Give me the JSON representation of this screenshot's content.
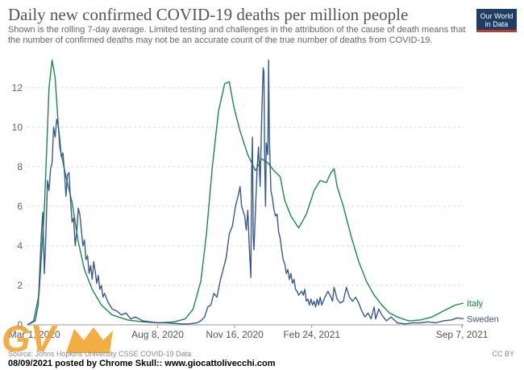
{
  "title": "Daily new confirmed COVID-19 deaths per million people",
  "subtitle": "Shown is the rolling 7-day average. Limited testing and challenges in the attribution of the cause of death means that the number of confirmed deaths may not be an accurate count of the true number of deaths from COVID-19.",
  "logo": {
    "line1": "Our World",
    "line2": "in Data"
  },
  "source": "Source: Johns Hopkins University CSSE COVID-19 Data",
  "license": "CC BY",
  "caption": "08/09/2021 posted by Chrome Skull:: www.giocattolivecchi.com",
  "watermark_text": "GV",
  "colors": {
    "italy": "#1a8a4c",
    "sweden": "#3a5a8c",
    "grid": "#dddddd",
    "axis": "#999999"
  },
  "chart_data": {
    "type": "line",
    "x_unit": "days since Feb 21, 2020",
    "x_range": [
      0,
      566
    ],
    "ylim": [
      0,
      13.5
    ],
    "yticks": [
      0,
      2,
      4,
      6,
      8,
      10,
      12
    ],
    "xticks": [
      {
        "label": "Mar 1, 2020",
        "x": 9
      },
      {
        "label": "Aug 8, 2020",
        "x": 169
      },
      {
        "label": "Nov 16, 2020",
        "x": 269
      },
      {
        "label": "Feb 24, 2021",
        "x": 369
      },
      {
        "label": "Sep 7, 2021",
        "x": 564
      }
    ],
    "grid": true,
    "series": [
      {
        "name": "Italy",
        "points": [
          [
            0,
            0
          ],
          [
            8,
            0.2
          ],
          [
            15,
            1.5
          ],
          [
            22,
            5.8
          ],
          [
            28,
            12.0
          ],
          [
            32,
            13.4
          ],
          [
            36,
            12.5
          ],
          [
            42,
            9.0
          ],
          [
            50,
            7.5
          ],
          [
            58,
            6.2
          ],
          [
            66,
            4.2
          ],
          [
            74,
            2.8
          ],
          [
            84,
            1.8
          ],
          [
            96,
            1.0
          ],
          [
            110,
            0.5
          ],
          [
            130,
            0.25
          ],
          [
            150,
            0.15
          ],
          [
            170,
            0.1
          ],
          [
            190,
            0.15
          ],
          [
            205,
            0.3
          ],
          [
            215,
            0.8
          ],
          [
            225,
            2.2
          ],
          [
            232,
            4.5
          ],
          [
            240,
            8.0
          ],
          [
            248,
            10.8
          ],
          [
            256,
            12.2
          ],
          [
            262,
            12.3
          ],
          [
            268,
            11.0
          ],
          [
            276,
            9.8
          ],
          [
            286,
            8.6
          ],
          [
            296,
            7.8
          ],
          [
            304,
            8.4
          ],
          [
            312,
            8.2
          ],
          [
            320,
            7.8
          ],
          [
            328,
            7.5
          ],
          [
            334,
            6.3
          ],
          [
            342,
            5.5
          ],
          [
            352,
            4.9
          ],
          [
            362,
            5.6
          ],
          [
            372,
            6.8
          ],
          [
            380,
            7.3
          ],
          [
            388,
            7.2
          ],
          [
            394,
            7.7
          ],
          [
            398,
            7.9
          ],
          [
            402,
            7.0
          ],
          [
            410,
            6.0
          ],
          [
            420,
            4.5
          ],
          [
            430,
            3.2
          ],
          [
            440,
            2.2
          ],
          [
            450,
            1.5
          ],
          [
            460,
            1.0
          ],
          [
            470,
            0.6
          ],
          [
            480,
            0.4
          ],
          [
            495,
            0.2
          ],
          [
            510,
            0.25
          ],
          [
            525,
            0.4
          ],
          [
            540,
            0.7
          ],
          [
            555,
            1.0
          ],
          [
            566,
            1.1
          ]
        ]
      },
      {
        "name": "Sweden",
        "points": [
          [
            0,
            0
          ],
          [
            10,
            0.2
          ],
          [
            14,
            1.0
          ],
          [
            18,
            4.5
          ],
          [
            20,
            5.7
          ],
          [
            22,
            2.6
          ],
          [
            24,
            4.5
          ],
          [
            26,
            7.3
          ],
          [
            28,
            6.8
          ],
          [
            30,
            7.9
          ],
          [
            32,
            8.2
          ],
          [
            34,
            10.0
          ],
          [
            36,
            9.5
          ],
          [
            38,
            10.4
          ],
          [
            40,
            10.1
          ],
          [
            42,
            9.4
          ],
          [
            44,
            8.5
          ],
          [
            46,
            8.7
          ],
          [
            48,
            7.8
          ],
          [
            50,
            6.5
          ],
          [
            52,
            7.6
          ],
          [
            54,
            7.7
          ],
          [
            56,
            6.3
          ],
          [
            58,
            5.2
          ],
          [
            60,
            5.4
          ],
          [
            62,
            4.0
          ],
          [
            64,
            4.7
          ],
          [
            66,
            5.9
          ],
          [
            68,
            5.6
          ],
          [
            70,
            4.8
          ],
          [
            72,
            4.0
          ],
          [
            74,
            4.3
          ],
          [
            76,
            3.3
          ],
          [
            78,
            3.5
          ],
          [
            80,
            2.6
          ],
          [
            82,
            3.0
          ],
          [
            84,
            2.3
          ],
          [
            86,
            3.2
          ],
          [
            88,
            2.7
          ],
          [
            90,
            2.1
          ],
          [
            92,
            2.5
          ],
          [
            94,
            1.8
          ],
          [
            96,
            2.0
          ],
          [
            98,
            1.4
          ],
          [
            100,
            1.6
          ],
          [
            104,
            1.2
          ],
          [
            110,
            0.8
          ],
          [
            116,
            0.7
          ],
          [
            122,
            0.5
          ],
          [
            128,
            0.6
          ],
          [
            134,
            0.3
          ],
          [
            140,
            0.4
          ],
          [
            150,
            0.2
          ],
          [
            160,
            0.15
          ],
          [
            170,
            0.1
          ],
          [
            180,
            0.1
          ],
          [
            200,
            0.05
          ],
          [
            210,
            0.05
          ],
          [
            220,
            0.1
          ],
          [
            225,
            0.2
          ],
          [
            230,
            0.4
          ],
          [
            234,
            0.9
          ],
          [
            238,
            1.0
          ],
          [
            242,
            1.6
          ],
          [
            246,
            1.4
          ],
          [
            250,
            2.2
          ],
          [
            254,
            2.8
          ],
          [
            258,
            3.4
          ],
          [
            262,
            4.6
          ],
          [
            266,
            5.0
          ],
          [
            270,
            6.0
          ],
          [
            274,
            6.6
          ],
          [
            276,
            7.0
          ],
          [
            278,
            6.0
          ],
          [
            282,
            5.5
          ],
          [
            284,
            4.8
          ],
          [
            286,
            5.8
          ],
          [
            288,
            3.9
          ],
          [
            290,
            2.4
          ],
          [
            291,
            7.5
          ],
          [
            292,
            9.5
          ],
          [
            293,
            4.5
          ],
          [
            294,
            3.8
          ],
          [
            296,
            5.8
          ],
          [
            298,
            7.8
          ],
          [
            300,
            9.0
          ],
          [
            302,
            7.0
          ],
          [
            304,
            10.5
          ],
          [
            306,
            13.0
          ],
          [
            307,
            12.8
          ],
          [
            308,
            8.0
          ],
          [
            309,
            6.0
          ],
          [
            310,
            9.2
          ],
          [
            312,
            8.6
          ],
          [
            313,
            13.4
          ],
          [
            314,
            9.6
          ],
          [
            316,
            6.8
          ],
          [
            318,
            6.4
          ],
          [
            320,
            5.8
          ],
          [
            322,
            5.5
          ],
          [
            324,
            5.6
          ],
          [
            326,
            4.7
          ],
          [
            328,
            4.4
          ],
          [
            330,
            3.8
          ],
          [
            332,
            3.3
          ],
          [
            334,
            3.1
          ],
          [
            336,
            2.6
          ],
          [
            338,
            2.8
          ],
          [
            340,
            2.3
          ],
          [
            342,
            2.6
          ],
          [
            344,
            2.1
          ],
          [
            346,
            2.3
          ],
          [
            348,
            1.8
          ],
          [
            350,
            1.7
          ],
          [
            352,
            1.5
          ],
          [
            354,
            1.6
          ],
          [
            356,
            1.7
          ],
          [
            358,
            1.5
          ],
          [
            360,
            1.8
          ],
          [
            362,
            1.2
          ],
          [
            364,
            1.3
          ],
          [
            366,
            1.0
          ],
          [
            368,
            1.3
          ],
          [
            370,
            1.0
          ],
          [
            372,
            1.2
          ],
          [
            374,
            0.9
          ],
          [
            376,
            1.3
          ],
          [
            378,
            1.0
          ],
          [
            380,
            1.4
          ],
          [
            382,
            1.0
          ],
          [
            386,
            1.4
          ],
          [
            390,
            1.7
          ],
          [
            394,
            1.4
          ],
          [
            396,
            1.2
          ],
          [
            398,
            1.9
          ],
          [
            402,
            1.3
          ],
          [
            406,
            1.1
          ],
          [
            410,
            1.2
          ],
          [
            414,
            1.9
          ],
          [
            418,
            1.4
          ],
          [
            422,
            1.2
          ],
          [
            426,
            1.4
          ],
          [
            430,
            1.1
          ],
          [
            434,
            0.7
          ],
          [
            438,
            0.4
          ],
          [
            442,
            0.6
          ],
          [
            446,
            0.3
          ],
          [
            450,
            0.9
          ],
          [
            452,
            0.3
          ],
          [
            456,
            0.8
          ],
          [
            460,
            0.5
          ],
          [
            466,
            0.2
          ],
          [
            472,
            0.4
          ],
          [
            480,
            0.1
          ],
          [
            490,
            0.05
          ],
          [
            500,
            0.1
          ],
          [
            510,
            0.1
          ],
          [
            520,
            0.15
          ],
          [
            530,
            0.1
          ],
          [
            540,
            0.2
          ],
          [
            550,
            0.25
          ],
          [
            558,
            0.35
          ],
          [
            566,
            0.3
          ]
        ]
      }
    ]
  }
}
